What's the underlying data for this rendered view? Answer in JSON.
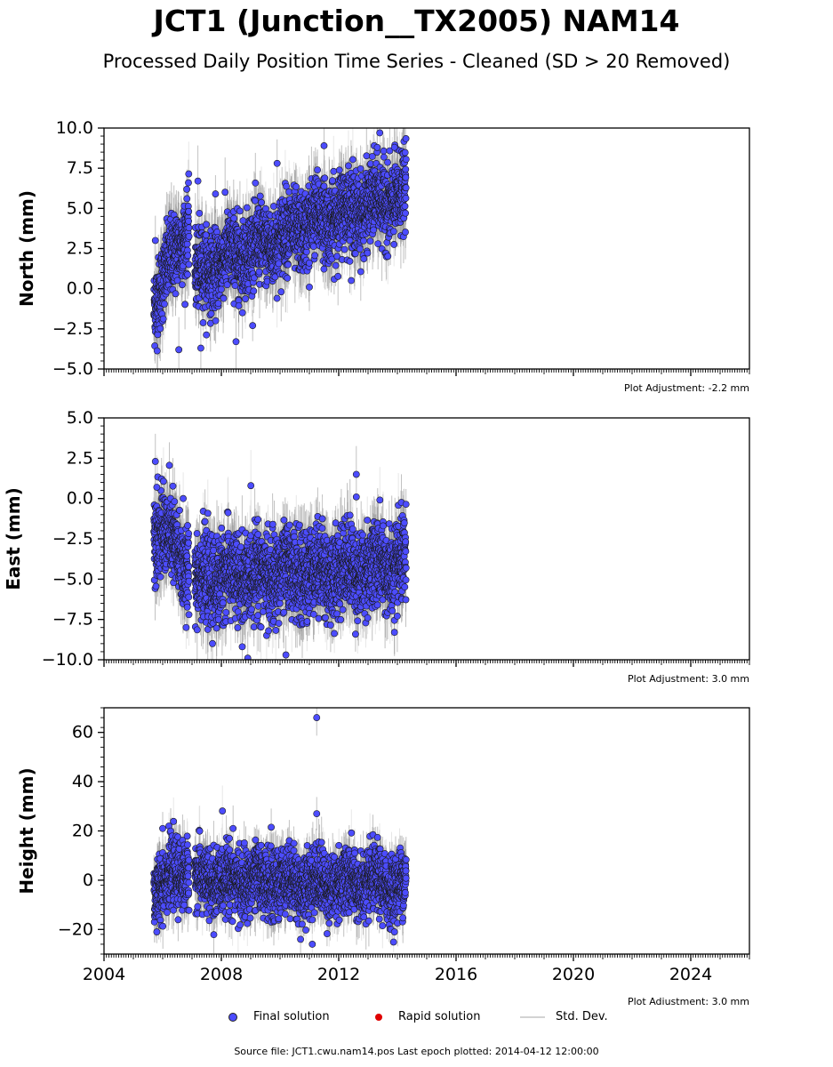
{
  "header": {
    "title": "JCT1 (Junction__TX2005) NAM14",
    "subtitle": "Processed Daily Position Time Series - Cleaned (SD > 20 Removed)"
  },
  "legend": {
    "final_label": "Final solution",
    "rapid_label": "Rapid solution",
    "std_label": "Std. Dev.",
    "final_color": "#4c4cff",
    "rapid_color": "#e00000",
    "std_color": "#d3d3d3"
  },
  "footer": {
    "source": "Source file: JCT1.cwu.nam14.pos  Last epoch plotted: 2014-04-12 12:00:00"
  },
  "chart_data": [
    {
      "type": "scatter",
      "ylabel": "North (mm)",
      "adjustment": "Plot Adjustment: -2.2 mm",
      "xlim": [
        2004,
        2026
      ],
      "ylim": [
        -5,
        10
      ],
      "yticks": [
        "10.0",
        "7.5",
        "5.0",
        "2.5",
        "0.0",
        "−2.5",
        "−5.0"
      ],
      "xtick_labels_shown": false,
      "series": [
        {
          "name": "Final solution",
          "segments": [
            [
              2005.7,
              2006.9,
              -0.8,
              4.2
            ],
            [
              2007.1,
              2009.0,
              0.8,
              2.6
            ],
            [
              2009.0,
              2011.2,
              2.3,
              4.2
            ],
            [
              2011.2,
              2014.3,
              4.2,
              5.8
            ]
          ],
          "noise_sd": 1.2,
          "error_sd": 1.5
        }
      ],
      "extremes": [
        [
          2005.75,
          3.0
        ],
        [
          2007.2,
          6.7
        ],
        [
          2007.8,
          5.9
        ],
        [
          2009.9,
          7.8
        ],
        [
          2011.5,
          8.9
        ],
        [
          2013.4,
          9.7
        ],
        [
          2013.9,
          8.8
        ],
        [
          2006.55,
          -3.8
        ],
        [
          2007.3,
          -3.7
        ],
        [
          2008.5,
          -3.3
        ],
        [
          2011.0,
          0.1
        ]
      ]
    },
    {
      "type": "scatter",
      "ylabel": "East (mm)",
      "adjustment": "Plot Adjustment: 3.0 mm",
      "xlim": [
        2004,
        2026
      ],
      "ylim": [
        -10,
        5
      ],
      "yticks": [
        "5.0",
        "2.5",
        "0.0",
        "−2.5",
        "−5.0",
        "−7.5",
        "−10.0"
      ],
      "xtick_labels_shown": false,
      "series": [
        {
          "name": "Final solution",
          "segments": [
            [
              2005.7,
              2006.9,
              -1.5,
              -4.2
            ],
            [
              2007.1,
              2014.3,
              -5.0,
              -4.2
            ]
          ],
          "noise_sd": 1.3,
          "error_sd": 1.5
        }
      ],
      "extremes": [
        [
          2005.75,
          2.3
        ],
        [
          2005.8,
          0.7
        ],
        [
          2006.7,
          0.0
        ],
        [
          2012.6,
          1.5
        ],
        [
          2012.6,
          0.1
        ],
        [
          2008.9,
          -9.9
        ],
        [
          2010.2,
          -9.7
        ],
        [
          2006.8,
          -8.0
        ],
        [
          2013.9,
          -8.3
        ]
      ]
    },
    {
      "type": "scatter",
      "ylabel": "Height (mm)",
      "adjustment": "Plot Adjustment: 3.0 mm",
      "xlim": [
        2004,
        2026
      ],
      "ylim": [
        -30,
        70
      ],
      "yticks": [
        "60",
        "40",
        "20",
        "0",
        "−20"
      ],
      "xticks": [
        "2004",
        "2008",
        "2012",
        "2016",
        "2020",
        "2024"
      ],
      "xtick_labels_shown": true,
      "series": [
        {
          "name": "Final solution",
          "segments": [
            [
              2005.7,
              2006.9,
              -3.0,
              5.0
            ],
            [
              2007.1,
              2014.3,
              0.0,
              -2.0
            ]
          ],
          "noise_sd": 6.5,
          "error_sd": 7.0
        }
      ],
      "extremes": [
        [
          2011.25,
          66.0
        ],
        [
          2011.25,
          27.0
        ],
        [
          2006.0,
          21.0
        ],
        [
          2008.4,
          21.0
        ],
        [
          2009.7,
          21.5
        ],
        [
          2011.1,
          -26.0
        ],
        [
          2010.7,
          -24.0
        ],
        [
          2005.8,
          -21.0
        ],
        [
          2013.9,
          -21.0
        ]
      ]
    }
  ]
}
